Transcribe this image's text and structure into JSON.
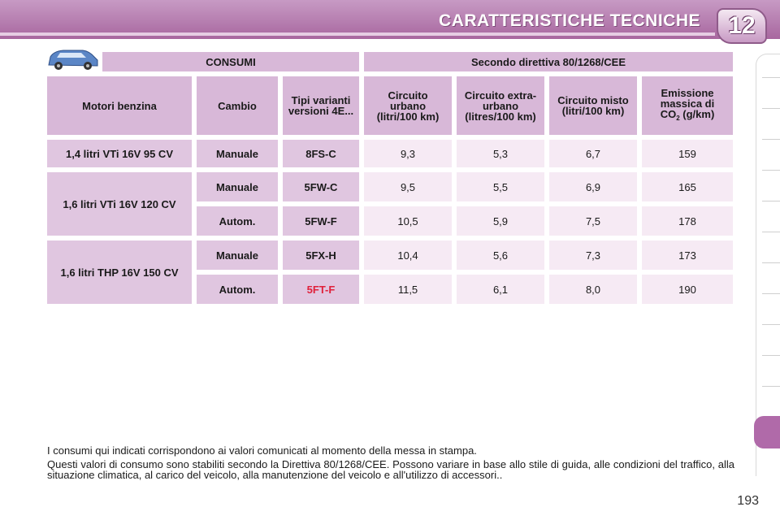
{
  "header": {
    "title": "CARATTERISTICHE TECNICHE",
    "chapter": "12"
  },
  "table": {
    "top_headers": [
      "CONSUMI",
      "Secondo direttiva 80/1268/CEE"
    ],
    "col_headers": {
      "engine": "Motori benzina",
      "gearbox": "Cambio",
      "type": "Tipi varianti versioni 4E...",
      "urban": "Circuito urbano (litri/100 km)",
      "extra": "Circuito extra-urbano (litres/100 km)",
      "mixed": "Circuito misto (litri/100 km)",
      "co2_prefix": "Emissione massica di CO",
      "co2_sub": "2",
      "co2_suffix": " (g/km)"
    },
    "groups": [
      {
        "engine": "1,4 litri VTi 16V 95 CV",
        "rows": [
          {
            "gearbox": "Manuale",
            "type": "8FS-C",
            "urban": "9,3",
            "extra": "5,3",
            "mixed": "6,7",
            "co2": "159"
          }
        ]
      },
      {
        "engine": "1,6 litri VTi 16V 120 CV",
        "rows": [
          {
            "gearbox": "Manuale",
            "type": "5FW-C",
            "urban": "9,5",
            "extra": "5,5",
            "mixed": "6,9",
            "co2": "165"
          },
          {
            "gearbox": "Autom.",
            "type": "5FW-F",
            "urban": "10,5",
            "extra": "5,9",
            "mixed": "7,5",
            "co2": "178"
          }
        ]
      },
      {
        "engine": "1,6 litri THP 16V 150 CV",
        "rows": [
          {
            "gearbox": "Manuale",
            "type": "5FX-H",
            "urban": "10,4",
            "extra": "5,6",
            "mixed": "7,3",
            "co2": "173"
          },
          {
            "gearbox": "Autom.",
            "type": "5FT-F",
            "urban": "11,5",
            "extra": "6,1",
            "mixed": "8,0",
            "co2": "190"
          }
        ]
      }
    ]
  },
  "notes": {
    "line1": "I consumi qui indicati corrispondono ai valori comunicati al momento della messa in stampa.",
    "line2": "Questi valori di consumo sono stabiliti secondo la Direttiva 80/1268/CEE. Possono variare in base allo stile di guida, alle condizioni del traffico, alla situazione climatica, al carico del veicolo, alla manutenzione del veicolo e all'utilizzo di accessori.."
  },
  "page_number": "193",
  "colors": {
    "accent": "#b06aa9",
    "header_cell": "#d8b8d8",
    "value_cell": "#f6eaf4",
    "highlight_red": "#e0203a"
  }
}
